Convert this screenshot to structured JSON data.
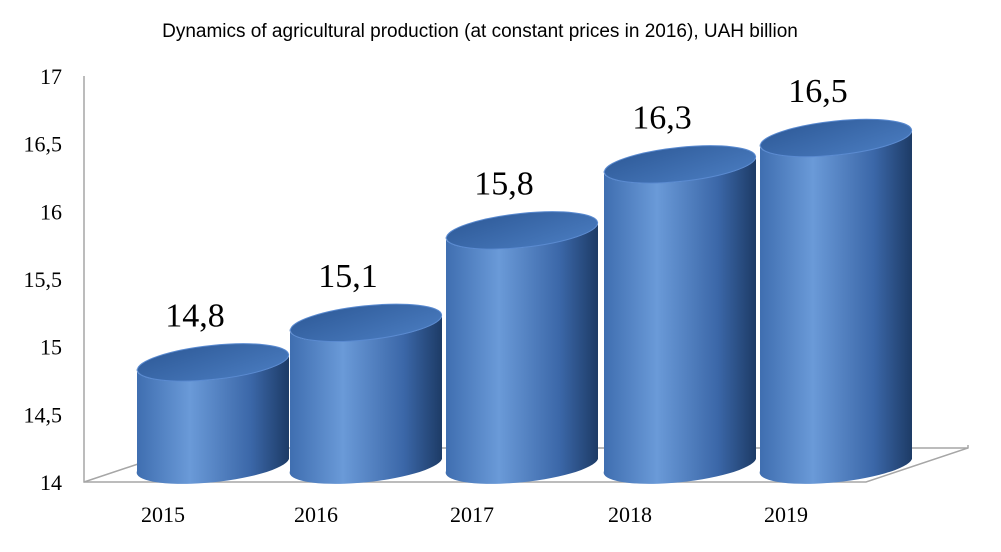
{
  "chart_data": {
    "type": "bar",
    "title": "Dynamics of agricultural production (at constant prices in 2016), UAH billion",
    "categories": [
      "2015",
      "2016",
      "2017",
      "2018",
      "2019"
    ],
    "values": [
      14.8,
      15.1,
      15.8,
      16.3,
      16.5
    ],
    "value_labels": [
      "14,8",
      "15,1",
      "15,8",
      "16,3",
      "16,5"
    ],
    "ylim": [
      14,
      17
    ],
    "yticks": [
      14,
      14.5,
      15,
      15.5,
      16,
      16.5,
      17
    ],
    "ytick_labels": [
      "14",
      "14,5",
      "15",
      "15,5",
      "16",
      "16,5",
      "17"
    ],
    "bar_shape": "cylinder",
    "grid": false,
    "legend": "none",
    "colors": {
      "bar_light": "#6a9ad8",
      "bar_mid": "#4a7cc0",
      "bar_dark": "#1d3b66",
      "bar_top": "#3a68a8",
      "axis": "#a6a6a6"
    }
  }
}
